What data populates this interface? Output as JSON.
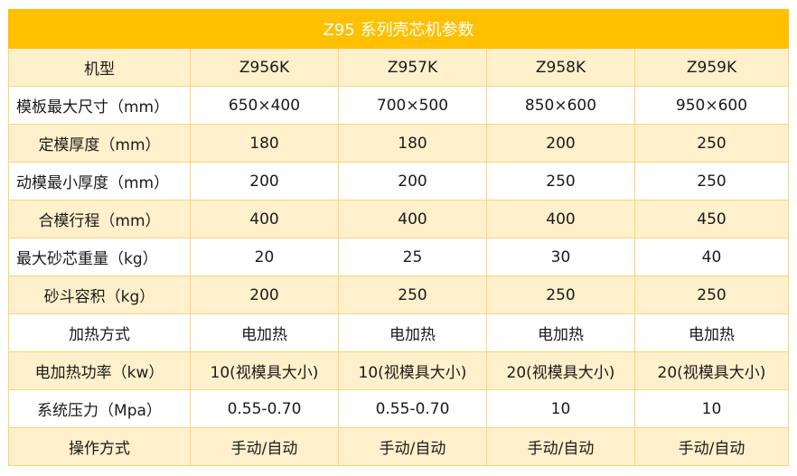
{
  "table": {
    "title": "Z95 系列壳芯机参数",
    "header": {
      "label": "机型",
      "models": [
        "Z956K",
        "Z957K",
        "Z958K",
        "Z959K"
      ]
    },
    "rows": [
      {
        "label": "模板最大尺寸（mm）",
        "values": [
          "650×400",
          "700×500",
          "850×600",
          "950×600"
        ]
      },
      {
        "label": "定模厚度（mm）",
        "values": [
          "180",
          "180",
          "200",
          "250"
        ]
      },
      {
        "label": "动模最小厚度（mm）",
        "values": [
          "200",
          "200",
          "250",
          "250"
        ]
      },
      {
        "label": "合模行程（mm）",
        "values": [
          "400",
          "400",
          "400",
          "450"
        ]
      },
      {
        "label": "最大砂芯重量（kg）",
        "values": [
          "20",
          "25",
          "30",
          "40"
        ]
      },
      {
        "label": "砂斗容积（kg）",
        "values": [
          "200",
          "250",
          "250",
          "250"
        ]
      },
      {
        "label": "加热方式",
        "values": [
          "电加热",
          "电加热",
          "电加热",
          "电加热"
        ]
      },
      {
        "label": "电加热功率（kw）",
        "values": [
          "10(视模具大小)",
          "10(视模具大小)",
          "20(视模具大小)",
          "20(视模具大小)"
        ]
      },
      {
        "label": "系统压力（Mpa）",
        "values": [
          "0.55-0.70",
          "0.55-0.70",
          "10",
          "10"
        ]
      },
      {
        "label": "操作方式",
        "values": [
          "手动/自动",
          "手动/自动",
          "手动/自动",
          "手动/自动"
        ]
      }
    ]
  },
  "colors": {
    "title_bg": "#ffc000",
    "shade_row_bg": "#fff0cc",
    "border": "#f5d77a"
  }
}
